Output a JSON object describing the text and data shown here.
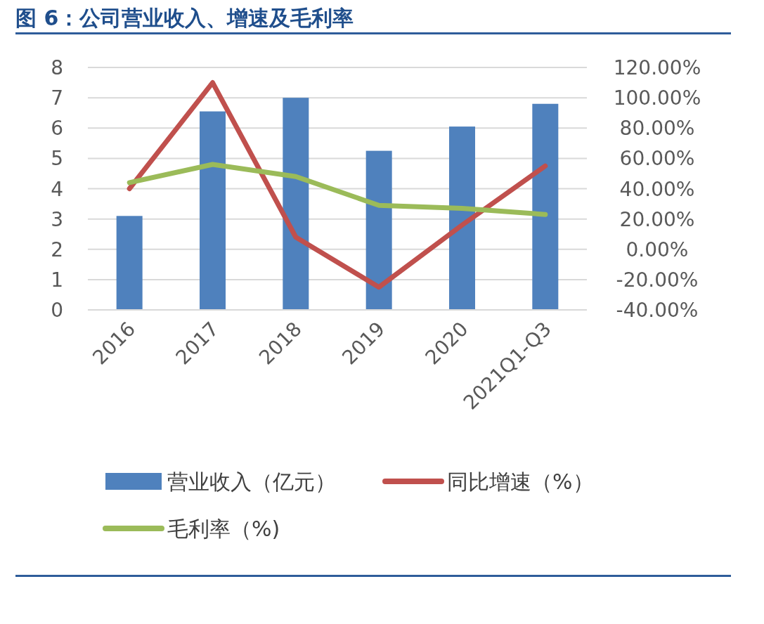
{
  "chart_data": {
    "type": "bar",
    "title": "图 6：公司营业收入、增速及毛利率",
    "categories": [
      "2016",
      "2017",
      "2018",
      "2019",
      "2020",
      "2021Q1-Q3"
    ],
    "series": [
      {
        "name": "营业收入（亿元）",
        "color": "#4f81bd",
        "values": [
          3.1,
          6.55,
          7.0,
          5.25,
          6.05,
          6.8
        ]
      },
      {
        "name": "同比增速（%）",
        "type": "line",
        "axis": "y2",
        "color": "#c0504d",
        "values": [
          40,
          110,
          8,
          -25,
          16,
          55
        ]
      },
      {
        "name": "毛利率（%)",
        "type": "line",
        "axis": "y2",
        "color": "#9bbb59",
        "values": [
          44,
          56,
          48,
          29,
          27,
          23
        ]
      }
    ],
    "ylim": [
      0,
      8
    ],
    "yticks": [
      0,
      1,
      2,
      3,
      4,
      5,
      6,
      7,
      8
    ],
    "y2lim": [
      -40,
      120
    ],
    "y2ticks": [
      {
        "value": -40,
        "label": "-40.00%"
      },
      {
        "value": -20,
        "label": "-20.00%"
      },
      {
        "value": 0,
        "label": "0.00%"
      },
      {
        "value": 20,
        "label": "20.00%"
      },
      {
        "value": 40,
        "label": "40.00%"
      },
      {
        "value": 60,
        "label": "60.00%"
      },
      {
        "value": 80,
        "label": "80.00%"
      },
      {
        "value": 100,
        "label": "100.00%"
      },
      {
        "value": 120,
        "label": "120.00%"
      }
    ],
    "grid": "y",
    "legend": "bottom"
  }
}
